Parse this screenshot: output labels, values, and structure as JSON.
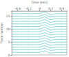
{
  "chart_data": {
    "type": "line",
    "x_label": "Time (sec)",
    "y_label": "Trace number",
    "x": [
      -0.5,
      -0.4,
      -0.3,
      -0.2,
      -0.1,
      0,
      0.1,
      0.2,
      0.3,
      0.4,
      0.5
    ],
    "xlim": [
      -0.5,
      0.5
    ],
    "xticks": [
      -0.4,
      -0.2,
      0,
      0.2,
      0.4
    ],
    "ylim": [
      0,
      17
    ],
    "yticks": [
      0,
      5,
      10,
      15
    ],
    "grid": true,
    "color": "#5cc4c8",
    "series": [
      {
        "values": [
          1,
          1,
          1,
          1,
          1,
          1,
          1.6,
          0.7,
          1,
          1,
          1
        ]
      },
      {
        "values": [
          2,
          2,
          2,
          2,
          2,
          2,
          2.6,
          1.7,
          2,
          2,
          2
        ]
      },
      {
        "values": [
          3,
          3,
          3,
          3,
          3,
          3,
          3.6,
          2.7,
          3,
          3,
          3
        ]
      },
      {
        "values": [
          4,
          4,
          4,
          4,
          4,
          4,
          4.6,
          3.7,
          4,
          4,
          4
        ]
      },
      {
        "values": [
          5,
          5,
          5,
          5,
          5,
          5,
          5.6,
          4.7,
          5,
          5,
          5
        ]
      },
      {
        "values": [
          6,
          6,
          6,
          6,
          6,
          6,
          6.6,
          5.7,
          6,
          6,
          6
        ]
      },
      {
        "values": [
          7,
          7,
          7,
          7,
          7,
          7,
          7.6,
          6.7,
          7,
          7,
          7
        ]
      },
      {
        "values": [
          8,
          8,
          8,
          8,
          8,
          8,
          8.6,
          7.7,
          8,
          8,
          8
        ]
      },
      {
        "values": [
          9,
          9,
          9,
          9,
          9,
          9,
          9.7,
          8.6,
          9,
          9,
          9
        ]
      },
      {
        "values": [
          10,
          10,
          10,
          10,
          10,
          10,
          10.7,
          9.6,
          10,
          10,
          10
        ]
      },
      {
        "values": [
          11,
          11,
          11,
          11,
          11,
          11,
          11.7,
          10.6,
          11,
          11,
          11
        ]
      },
      {
        "values": [
          12,
          12,
          12,
          12,
          12,
          12,
          12.7,
          11.6,
          12,
          12,
          12
        ]
      },
      {
        "values": [
          13,
          13,
          13,
          13,
          13,
          13,
          13.7,
          12.6,
          13,
          13,
          13
        ]
      },
      {
        "values": [
          14,
          14,
          14,
          14,
          14,
          14,
          14.7,
          13.6,
          14,
          14,
          14
        ]
      },
      {
        "values": [
          15,
          15,
          15,
          15,
          15,
          15,
          15.7,
          14.6,
          15,
          15,
          15
        ]
      },
      {
        "values": [
          16,
          16,
          16,
          16,
          16,
          16,
          16.7,
          15.6,
          16,
          16,
          16
        ]
      }
    ]
  }
}
